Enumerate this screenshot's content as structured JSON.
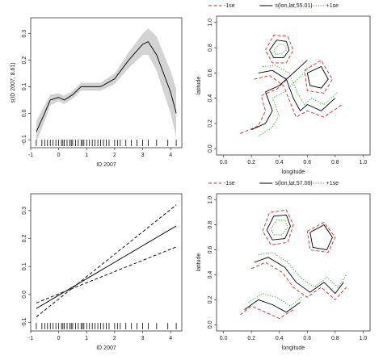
{
  "chart_data": [
    {
      "type": "line",
      "xlabel": "ID 2007",
      "ylabel": "s(ID 2007, 8.61)",
      "xlim": [
        -1,
        4.4
      ],
      "ylim": [
        -0.13,
        0.36
      ],
      "xticks": [
        -1,
        0,
        1,
        2,
        3,
        4
      ],
      "yticks": [
        -0.1,
        {
          "value": 0,
          "label": "0.0"
        },
        0.1,
        0.2,
        0.3
      ],
      "rug": [
        -0.8,
        -0.6,
        -0.5,
        -0.4,
        -0.3,
        -0.2,
        -0.1,
        0,
        0.1,
        0.15,
        0.2,
        0.3,
        0.4,
        0.45,
        0.5,
        0.6,
        0.7,
        0.8,
        0.85,
        0.9,
        1,
        1.1,
        1.2,
        1.3,
        1.4,
        1.5,
        1.6,
        1.7,
        1.8,
        2,
        2.1,
        2.2,
        2.4,
        2.6,
        2.8,
        3,
        3.2,
        3.5,
        3.9,
        4.2
      ],
      "series": [
        {
          "color": "#111111",
          "dash": "solid",
          "band_color": "#d3d3d3",
          "x": [
            -0.8,
            -0.5,
            -0.3,
            0,
            0.2,
            0.5,
            0.8,
            1,
            1.5,
            2,
            2.5,
            3,
            3.2,
            3.5,
            4,
            4.2
          ],
          "values": [
            -0.07,
            0,
            0.05,
            0.06,
            0.05,
            0.07,
            0.1,
            0.1,
            0.1,
            0.13,
            0.2,
            0.26,
            0.27,
            0.22,
            0.08,
            0
          ],
          "lower": [
            -0.11,
            -0.03,
            0.03,
            0.045,
            0.035,
            0.055,
            0.085,
            0.085,
            0.085,
            0.11,
            0.17,
            0.22,
            0.22,
            0.16,
            0.0,
            -0.09
          ],
          "upper": [
            -0.03,
            0.03,
            0.07,
            0.075,
            0.065,
            0.085,
            0.115,
            0.115,
            0.115,
            0.15,
            0.23,
            0.3,
            0.32,
            0.29,
            0.16,
            0.09
          ]
        }
      ]
    },
    {
      "type": "contour",
      "xlabel": "longitude",
      "ylabel": "latitude",
      "xlim": [
        -0.05,
        1.05
      ],
      "ylim": [
        -0.05,
        1.05
      ],
      "xticks": [
        {
          "value": 0,
          "label": "0.0"
        },
        0.2,
        0.4,
        0.6,
        0.8,
        {
          "value": 1,
          "label": "1.0"
        }
      ],
      "yticks": [
        {
          "value": 0,
          "label": "0.0"
        },
        0.2,
        0.4,
        0.6,
        0.8,
        {
          "value": 1,
          "label": "1.0"
        }
      ],
      "series": [
        {
          "name": "-1se",
          "color": "#dd2222",
          "dash": "dashed",
          "lines": [
            {
              "x": [
                0.3,
                0.36,
                0.46,
                0.5,
                0.45,
                0.35,
                0.3
              ],
              "y": [
                0.78,
                0.9,
                0.89,
                0.78,
                0.68,
                0.68,
                0.78
              ]
            },
            {
              "x": [
                0.22,
                0.33,
                0.43,
                0.48,
                0.52,
                0.6,
                0.72,
                0.85
              ],
              "y": [
                0.55,
                0.58,
                0.5,
                0.36,
                0.25,
                0.3,
                0.25,
                0.35
              ]
            },
            {
              "x": [
                0.58,
                0.7,
                0.78,
                0.72,
                0.6,
                0.58
              ],
              "y": [
                0.62,
                0.7,
                0.55,
                0.44,
                0.46,
                0.62
              ]
            },
            {
              "x": [
                0.12,
                0.25,
                0.3,
                0.27,
                0.38,
                0.48
              ],
              "y": [
                0.12,
                0.18,
                0.3,
                0.42,
                0.47,
                0.58
              ]
            }
          ]
        },
        {
          "name": "s(lon,lat,55.01)",
          "color": "#000000",
          "dash": "solid",
          "lines": [
            {
              "x": [
                0.33,
                0.38,
                0.45,
                0.47,
                0.43,
                0.36,
                0.33
              ],
              "y": [
                0.78,
                0.86,
                0.85,
                0.78,
                0.72,
                0.72,
                0.78
              ]
            },
            {
              "x": [
                0.25,
                0.35,
                0.45,
                0.5,
                0.55,
                0.6,
                0.7,
                0.8
              ],
              "y": [
                0.6,
                0.62,
                0.55,
                0.4,
                0.3,
                0.35,
                0.3,
                0.4
              ]
            },
            {
              "x": [
                0.2,
                0.3,
                0.35,
                0.3,
                0.4,
                0.5,
                0.6
              ],
              "y": [
                0.15,
                0.2,
                0.3,
                0.45,
                0.5,
                0.6,
                0.7
              ]
            },
            {
              "x": [
                0.6,
                0.7,
                0.75,
                0.7,
                0.62,
                0.6
              ],
              "y": [
                0.6,
                0.65,
                0.55,
                0.48,
                0.5,
                0.6
              ]
            }
          ]
        },
        {
          "name": "+1se",
          "color": "#22aa22",
          "dash": "dotted",
          "lines": [
            {
              "x": [
                0.36,
                0.4,
                0.44,
                0.45,
                0.41,
                0.37,
                0.36
              ],
              "y": [
                0.78,
                0.83,
                0.82,
                0.78,
                0.75,
                0.75,
                0.78
              ]
            },
            {
              "x": [
                0.28,
                0.37,
                0.47,
                0.53,
                0.58,
                0.63,
                0.72,
                0.82
              ],
              "y": [
                0.65,
                0.66,
                0.6,
                0.44,
                0.35,
                0.4,
                0.35,
                0.45
              ]
            },
            {
              "x": [
                0.25,
                0.34,
                0.4,
                0.35,
                0.44,
                0.53,
                0.63
              ],
              "y": [
                0.1,
                0.16,
                0.26,
                0.4,
                0.45,
                0.55,
                0.66
              ]
            }
          ]
        }
      ]
    },
    {
      "type": "line",
      "xlabel": "ID 2007",
      "xlim": [
        -1,
        4.4
      ],
      "ylim": [
        -0.13,
        0.36
      ],
      "xticks": [
        -1,
        0,
        1,
        2,
        3,
        4
      ],
      "yticks": [
        -0.1,
        {
          "value": 0,
          "label": "0.0"
        },
        0.1,
        0.2,
        0.3
      ],
      "rug": [
        -0.8,
        -0.6,
        -0.5,
        -0.4,
        -0.3,
        -0.2,
        -0.1,
        0,
        0.1,
        0.15,
        0.2,
        0.3,
        0.4,
        0.45,
        0.5,
        0.6,
        0.7,
        0.8,
        0.85,
        0.9,
        1,
        1.1,
        1.2,
        1.3,
        1.4,
        1.5,
        1.6,
        1.7,
        1.8,
        2,
        2.1,
        2.2,
        2.4,
        2.6,
        2.8,
        3,
        3.2,
        3.5,
        3.9,
        4.2
      ],
      "series": [
        {
          "color": "#111111",
          "dash": "solid",
          "x": [
            -0.8,
            4.2
          ],
          "values": [
            -0.05,
            0.245
          ]
        },
        {
          "color": "#111111",
          "dash": "dashed",
          "x": [
            -0.8,
            4.2
          ],
          "values": [
            -0.08,
            0.32
          ]
        },
        {
          "color": "#111111",
          "dash": "dashed",
          "x": [
            -0.8,
            4.2
          ],
          "values": [
            -0.03,
            0.17
          ]
        }
      ]
    },
    {
      "type": "contour",
      "xlabel": "longitude",
      "ylabel": "latitude",
      "xlim": [
        -0.05,
        1.05
      ],
      "ylim": [
        -0.05,
        1.05
      ],
      "xticks": [
        {
          "value": 0,
          "label": "0.0"
        },
        0.2,
        0.4,
        0.6,
        0.8,
        {
          "value": 1,
          "label": "1.0"
        }
      ],
      "yticks": [
        {
          "value": 0,
          "label": "0.0"
        },
        0.2,
        0.4,
        0.6,
        0.8,
        {
          "value": 1,
          "label": "1.0"
        }
      ],
      "series": [
        {
          "name": "-1se",
          "color": "#dd2222",
          "dash": "dashed",
          "lines": [
            {
              "x": [
                0.28,
                0.33,
                0.45,
                0.5,
                0.46,
                0.34,
                0.28
              ],
              "y": [
                0.75,
                0.9,
                0.92,
                0.8,
                0.66,
                0.64,
                0.75
              ]
            },
            {
              "x": [
                0.2,
                0.3,
                0.42,
                0.5,
                0.6,
                0.7,
                0.8,
                0.88
              ],
              "y": [
                0.45,
                0.5,
                0.42,
                0.3,
                0.22,
                0.3,
                0.2,
                0.3
              ]
            },
            {
              "x": [
                0.6,
                0.72,
                0.8,
                0.75,
                0.62,
                0.6
              ],
              "y": [
                0.75,
                0.82,
                0.7,
                0.58,
                0.6,
                0.75
              ]
            },
            {
              "x": [
                0.12,
                0.2,
                0.3,
                0.4,
                0.5
              ],
              "y": [
                0.08,
                0.15,
                0.1,
                0.05,
                0.12
              ]
            }
          ]
        },
        {
          "name": "s(lon,lat,57.08)",
          "color": "#000000",
          "dash": "solid",
          "lines": [
            {
              "x": [
                0.31,
                0.36,
                0.45,
                0.48,
                0.44,
                0.35,
                0.31
              ],
              "y": [
                0.76,
                0.87,
                0.88,
                0.79,
                0.69,
                0.68,
                0.76
              ]
            },
            {
              "x": [
                0.22,
                0.32,
                0.44,
                0.52,
                0.62,
                0.72,
                0.8,
                0.86
              ],
              "y": [
                0.5,
                0.54,
                0.46,
                0.34,
                0.26,
                0.34,
                0.25,
                0.34
              ]
            },
            {
              "x": [
                0.62,
                0.72,
                0.78,
                0.74,
                0.64,
                0.62
              ],
              "y": [
                0.74,
                0.8,
                0.7,
                0.6,
                0.62,
                0.74
              ]
            },
            {
              "x": [
                0.15,
                0.25,
                0.35,
                0.45,
                0.55
              ],
              "y": [
                0.12,
                0.2,
                0.16,
                0.1,
                0.18
              ]
            }
          ]
        },
        {
          "name": "+1se",
          "color": "#22aa22",
          "dash": "dotted",
          "lines": [
            {
              "x": [
                0.34,
                0.38,
                0.44,
                0.46,
                0.42,
                0.36,
                0.34
              ],
              "y": [
                0.77,
                0.84,
                0.84,
                0.78,
                0.72,
                0.72,
                0.77
              ]
            },
            {
              "x": [
                0.25,
                0.35,
                0.46,
                0.55,
                0.65,
                0.74,
                0.82,
                0.88
              ],
              "y": [
                0.56,
                0.58,
                0.5,
                0.38,
                0.3,
                0.38,
                0.3,
                0.4
              ]
            },
            {
              "x": [
                0.18,
                0.28,
                0.38,
                0.48,
                0.58
              ],
              "y": [
                0.18,
                0.25,
                0.22,
                0.15,
                0.24
              ]
            }
          ]
        }
      ]
    }
  ]
}
